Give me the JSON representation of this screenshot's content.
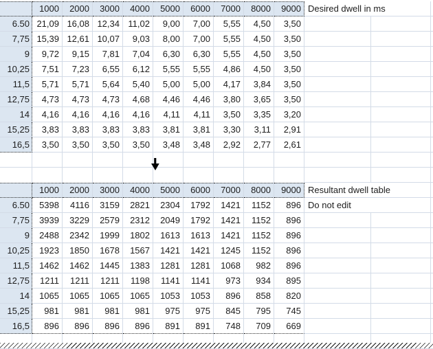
{
  "sheet": {
    "columns": [
      "1000",
      "2000",
      "3000",
      "4000",
      "5000",
      "6000",
      "7000",
      "8000",
      "9000"
    ],
    "top_table": {
      "title": "Desired dwell in ms",
      "rows": [
        {
          "label": "6.50",
          "values": [
            "21,09",
            "16,08",
            "12,34",
            "11,02",
            "9,00",
            "7,00",
            "5,55",
            "4,50",
            "3,50"
          ]
        },
        {
          "label": "7,75",
          "values": [
            "15,39",
            "12,61",
            "10,07",
            "9,03",
            "8,00",
            "7,00",
            "5,55",
            "4,50",
            "3,50"
          ]
        },
        {
          "label": "9",
          "values": [
            "9,72",
            "9,15",
            "7,81",
            "7,04",
            "6,30",
            "6,30",
            "5,55",
            "4,50",
            "3,50"
          ]
        },
        {
          "label": "10,25",
          "values": [
            "7,51",
            "7,23",
            "6,55",
            "6,12",
            "5,55",
            "5,55",
            "4,86",
            "4,50",
            "3,50"
          ]
        },
        {
          "label": "11,5",
          "values": [
            "5,71",
            "5,71",
            "5,64",
            "5,40",
            "5,00",
            "5,00",
            "4,17",
            "3,84",
            "3,50"
          ]
        },
        {
          "label": "12,75",
          "values": [
            "4,73",
            "4,73",
            "4,73",
            "4,68",
            "4,46",
            "4,46",
            "3,80",
            "3,65",
            "3,50"
          ]
        },
        {
          "label": "14",
          "values": [
            "4,16",
            "4,16",
            "4,16",
            "4,16",
            "4,11",
            "4,11",
            "3,50",
            "3,35",
            "3,20"
          ]
        },
        {
          "label": "15,25",
          "values": [
            "3,83",
            "3,83",
            "3,83",
            "3,83",
            "3,81",
            "3,81",
            "3,30",
            "3,11",
            "2,91"
          ]
        },
        {
          "label": "16,5",
          "values": [
            "3,50",
            "3,50",
            "3,50",
            "3,50",
            "3,48",
            "3,48",
            "2,92",
            "2,77",
            "2,61"
          ]
        }
      ]
    },
    "bottom_table": {
      "title": "Resultant dwell table",
      "note": "Do not edit",
      "rows": [
        {
          "label": "6.50",
          "values": [
            "5398",
            "4116",
            "3159",
            "2821",
            "2304",
            "1792",
            "1421",
            "1152",
            "896"
          ]
        },
        {
          "label": "7,75",
          "values": [
            "3939",
            "3229",
            "2579",
            "2312",
            "2049",
            "1792",
            "1421",
            "1152",
            "896"
          ]
        },
        {
          "label": "9",
          "values": [
            "2488",
            "2342",
            "1999",
            "1802",
            "1613",
            "1613",
            "1421",
            "1152",
            "896"
          ]
        },
        {
          "label": "10,25",
          "values": [
            "1923",
            "1850",
            "1678",
            "1567",
            "1421",
            "1421",
            "1245",
            "1152",
            "896"
          ]
        },
        {
          "label": "11,5",
          "values": [
            "1462",
            "1462",
            "1445",
            "1383",
            "1281",
            "1281",
            "1068",
            "982",
            "896"
          ]
        },
        {
          "label": "12,75",
          "values": [
            "1211",
            "1211",
            "1211",
            "1198",
            "1141",
            "1141",
            "973",
            "934",
            "895"
          ]
        },
        {
          "label": "14",
          "values": [
            "1065",
            "1065",
            "1065",
            "1065",
            "1053",
            "1053",
            "896",
            "858",
            "820"
          ]
        },
        {
          "label": "15,25",
          "values": [
            "981",
            "981",
            "981",
            "981",
            "975",
            "975",
            "845",
            "795",
            "745"
          ]
        },
        {
          "label": "16,5",
          "values": [
            "896",
            "896",
            "896",
            "896",
            "891",
            "891",
            "748",
            "709",
            "669"
          ]
        }
      ]
    },
    "icons": {
      "divider": "down-arrow",
      "bottom_edge": "torn-edge-hatch"
    },
    "colors": {
      "header_fill": "#dce6f1",
      "gridline": "#d3dbe7",
      "dashed_border": "#2b2b2b",
      "text": "#1d1d1d"
    }
  }
}
